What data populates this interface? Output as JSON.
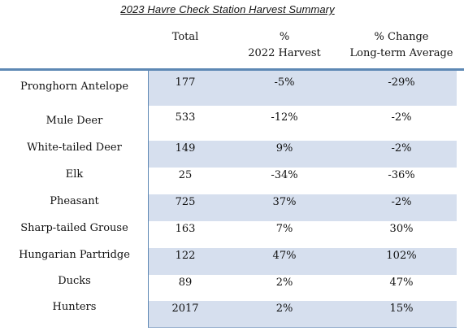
{
  "title": "2023 Havre Check Station Harvest Summary",
  "columns": {
    "total": "Total",
    "pct_line1": "%",
    "pct_line2": "2022 Harvest",
    "chg_line1": "% Change",
    "chg_line2": "Long-term Average"
  },
  "rows": [
    {
      "species": "Pronghorn Antelope",
      "total": "177",
      "pct_2022": "-5%",
      "pct_longterm": "-29%"
    },
    {
      "species": "Mule Deer",
      "total": "533",
      "pct_2022": "-12%",
      "pct_longterm": "-2%"
    },
    {
      "species": "White-tailed Deer",
      "total": "149",
      "pct_2022": "9%",
      "pct_longterm": "-2%"
    },
    {
      "species": "Elk",
      "total": "25",
      "pct_2022": "-34%",
      "pct_longterm": "-36%"
    },
    {
      "species": "Pheasant",
      "total": "725",
      "pct_2022": "37%",
      "pct_longterm": "-2%"
    },
    {
      "species": "Sharp-tailed Grouse",
      "total": "163",
      "pct_2022": "7%",
      "pct_longterm": "30%"
    },
    {
      "species": "Hungarian Partridge",
      "total": "122",
      "pct_2022": "47%",
      "pct_longterm": "102%"
    },
    {
      "species": "Ducks",
      "total": "89",
      "pct_2022": "2%",
      "pct_longterm": "47%"
    },
    {
      "species": "Hunters",
      "total": "2017",
      "pct_2022": "2%",
      "pct_longterm": "15%"
    }
  ],
  "colors": {
    "band_fill": "#d6dfee",
    "rule": "#5d88b4"
  }
}
